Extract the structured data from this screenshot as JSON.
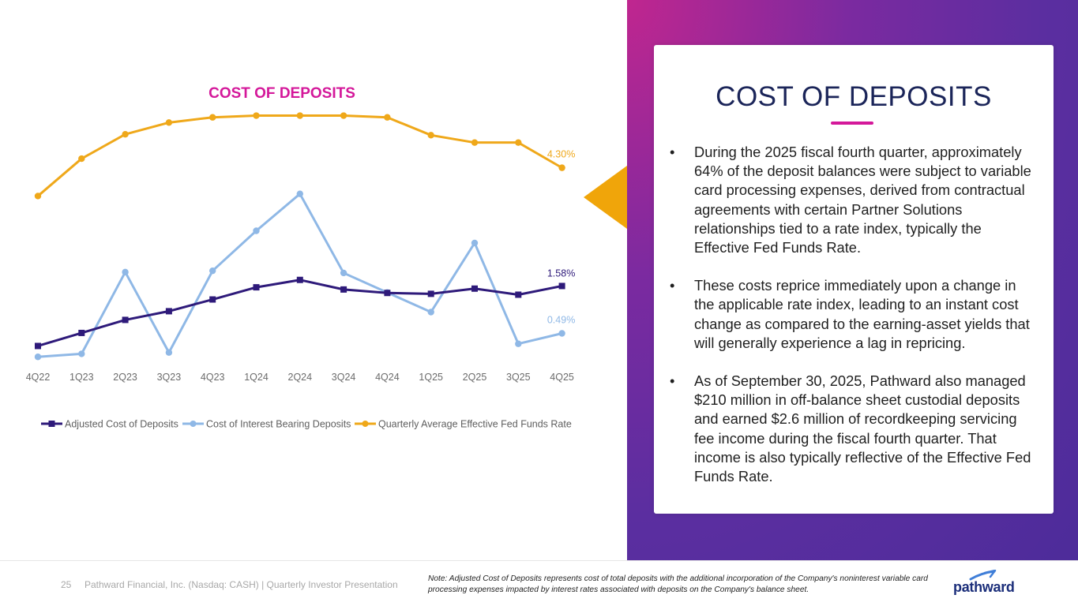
{
  "chart_data": {
    "type": "line",
    "title": "COST OF DEPOSITS",
    "categories": [
      "4Q22",
      "1Q23",
      "2Q23",
      "3Q23",
      "4Q23",
      "1Q24",
      "2Q24",
      "3Q24",
      "4Q24",
      "1Q25",
      "2Q25",
      "3Q25",
      "4Q25"
    ],
    "series": [
      {
        "name": "Adjusted Cost of Deposits",
        "color": "#2e1a7a",
        "marker": "square",
        "values": [
          0.2,
          0.5,
          0.8,
          1.0,
          1.27,
          1.55,
          1.72,
          1.5,
          1.42,
          1.4,
          1.52,
          1.38,
          1.58
        ],
        "end_label": "1.58%"
      },
      {
        "name": "Cost of Interest Bearing Deposits",
        "color": "#8fb8e6",
        "marker": "circle",
        "values": [
          -0.05,
          0.02,
          1.9,
          0.05,
          1.93,
          2.85,
          3.7,
          1.88,
          1.43,
          0.98,
          2.57,
          0.25,
          0.49
        ],
        "end_label": "0.49%"
      },
      {
        "name": "Quarterly Average Effective Fed Funds Rate",
        "color": "#efa81a",
        "marker": "circle",
        "values": [
          3.65,
          4.51,
          5.07,
          5.34,
          5.46,
          5.5,
          5.5,
          5.5,
          5.46,
          5.05,
          4.88,
          4.88,
          4.3
        ],
        "end_label": "4.30%"
      }
    ],
    "ylim": [
      -0.1,
      5.8
    ],
    "grid": false,
    "legend": "bottom"
  },
  "card": {
    "title": "COST OF DEPOSITS",
    "bullets": [
      "During the 2025 fiscal fourth quarter, approximately 64% of the deposit balances were subject to variable card processing expenses, derived from contractual agreements with certain Partner Solutions relationships tied to a rate index, typically the Effective Fed Funds Rate.",
      "These costs reprice immediately upon a change in the applicable rate index, leading to an instant cost change as compared to the earning-asset yields that will generally experience a lag in repricing.",
      "As of September 30, 2025, Pathward also managed $210 million in off-balance sheet custodial deposits and earned $2.6 million of recordkeeping servicing fee income during the fiscal fourth quarter. That income is also typically reflective of the Effective Fed Funds Rate."
    ],
    "bullet_char": "•"
  },
  "footer": {
    "page_number": "25",
    "text": "Pathward Financial, Inc. (Nasdaq: CASH) | Quarterly Investor Presentation",
    "note": "Note: Adjusted Cost of Deposits represents cost of total deposits with the additional incorporation of the Company's noninterest variable card processing expenses impacted by interest rates associated with deposits on the Company's balance sheet.",
    "logo_text": "pathward"
  },
  "colors": {
    "title_pink": "#d4189a",
    "navy": "#1b2559",
    "accent_orange": "#f0a50a"
  }
}
